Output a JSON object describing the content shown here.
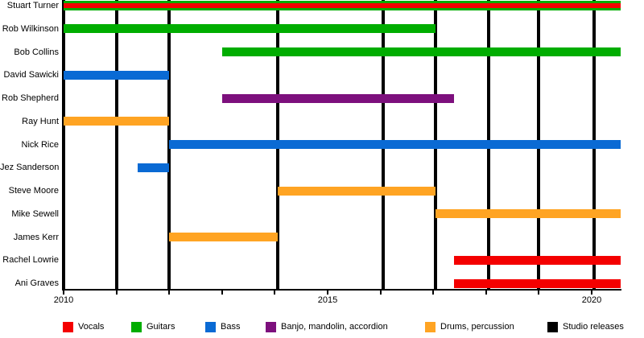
{
  "chart_data": {
    "type": "bar",
    "subtype": "gantt-member-timeline",
    "title": "",
    "x_axis": {
      "min": 2010,
      "max": 2020.6,
      "labeled_ticks": [
        2010,
        2015,
        2020
      ],
      "minor_tick_years": [
        2010,
        2011,
        2012,
        2013,
        2014,
        2015,
        2016,
        2017,
        2018,
        2019,
        2020
      ]
    },
    "members": [
      {
        "name": "Stuart Turner",
        "bars": [
          {
            "role": "Guitars",
            "start": 2010,
            "end": 2020.55
          },
          {
            "role": "Vocals",
            "start": 2010,
            "end": 2020.55,
            "overlay": true
          }
        ]
      },
      {
        "name": "Rob Wilkinson",
        "bars": [
          {
            "role": "Guitars",
            "start": 2010,
            "end": 2017.05
          }
        ]
      },
      {
        "name": "Bob Collins",
        "bars": [
          {
            "role": "Guitars",
            "start": 2013,
            "end": 2020.55
          }
        ]
      },
      {
        "name": "David Sawicki",
        "bars": [
          {
            "role": "Bass",
            "start": 2010,
            "end": 2012
          }
        ]
      },
      {
        "name": "Rob Shepherd",
        "bars": [
          {
            "role": "Banjo, mandolin, accordion",
            "start": 2013,
            "end": 2017.4
          }
        ]
      },
      {
        "name": "Ray Hunt",
        "bars": [
          {
            "role": "Drums, percussion",
            "start": 2010,
            "end": 2012
          }
        ]
      },
      {
        "name": "Nick Rice",
        "bars": [
          {
            "role": "Bass",
            "start": 2012,
            "end": 2020.55
          }
        ]
      },
      {
        "name": "Jez Sanderson",
        "bars": [
          {
            "role": "Bass",
            "start": 2011.4,
            "end": 2012
          }
        ]
      },
      {
        "name": "Steve Moore",
        "bars": [
          {
            "role": "Drums, percussion",
            "start": 2014.05,
            "end": 2017.05
          }
        ]
      },
      {
        "name": "Mike Sewell",
        "bars": [
          {
            "role": "Drums, percussion",
            "start": 2017.05,
            "end": 2020.55
          }
        ]
      },
      {
        "name": "James Kerr",
        "bars": [
          {
            "role": "Drums, percussion",
            "start": 2012,
            "end": 2014.05
          }
        ]
      },
      {
        "name": "Rachel Lowrie",
        "bars": [
          {
            "role": "Vocals",
            "start": 2017.4,
            "end": 2020.55
          }
        ]
      },
      {
        "name": "Ani Graves",
        "bars": [
          {
            "role": "Vocals",
            "start": 2017.4,
            "end": 2020.55
          }
        ]
      }
    ],
    "studio_releases": [
      2010,
      2011,
      2012,
      2014.05,
      2016.05,
      2017.05,
      2018.05,
      2019,
      2020.05
    ],
    "legend": [
      {
        "label": "Vocals",
        "color": "#F40000"
      },
      {
        "label": "Guitars",
        "color": "#00AD00"
      },
      {
        "label": "Bass",
        "color": "#0A6AD4"
      },
      {
        "label": "Banjo, mandolin, accordion",
        "color": "#7D107D"
      },
      {
        "label": "Drums, percussion",
        "color": "#FFA423"
      },
      {
        "label": "Studio releases",
        "color": "#000000"
      }
    ]
  }
}
